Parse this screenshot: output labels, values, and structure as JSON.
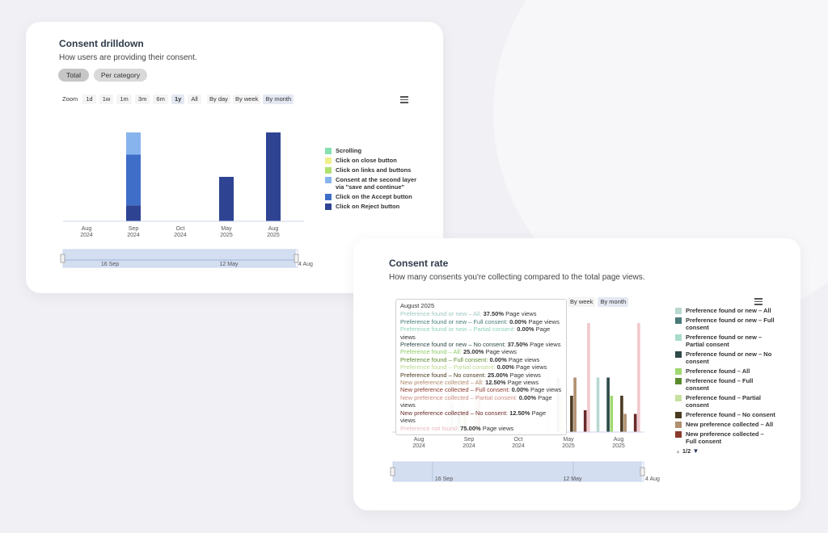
{
  "card1": {
    "title": "Consent drilldown",
    "subtitle": "How users are providing their consent.",
    "tabs": [
      {
        "label": "Total",
        "active": true
      },
      {
        "label": "Per category",
        "active": false
      }
    ],
    "zoom_label": "Zoom",
    "zoom_options": [
      "1d",
      "1w",
      "1m",
      "3m",
      "6m",
      "1y",
      "All"
    ],
    "zoom_selected": "1y",
    "group_options": [
      "By day",
      "By week",
      "By month"
    ],
    "group_selected": "By month",
    "navigator": {
      "labels": [
        "16 Sep",
        "12 May",
        "4 Aug"
      ]
    },
    "menu_icon": "hamburger-menu-icon"
  },
  "card2": {
    "title": "Consent rate",
    "subtitle": "How many consents you're collecting compared to the total page views.",
    "group_options": [
      "By week",
      "By month"
    ],
    "group_selected": "By month",
    "navigator": {
      "labels": [
        "16 Sep",
        "12 May",
        "4 Aug"
      ]
    },
    "legend_pager": "1/2",
    "menu_icon": "hamburger-menu-icon",
    "tooltip": {
      "title": "August 2025",
      "rows": [
        {
          "label": "Preference found or new – All",
          "value": "37.50%",
          "unit": "Page views",
          "color": "#9ec8c0"
        },
        {
          "label": "Preference found or new – Full consent",
          "value": "0.00%",
          "unit": "Page views",
          "color": "#4a7a7a"
        },
        {
          "label": "Preference found or new – Partial consent",
          "value": "0.00%",
          "unit": "Page views",
          "color": "#8ed1bf"
        },
        {
          "label": "Preference found or new – No consent",
          "value": "37.50%",
          "unit": "Page views",
          "color": "#2e4a48"
        },
        {
          "label": "Preference found – All",
          "value": "25.00%",
          "unit": "Page views",
          "color": "#8ccc66"
        },
        {
          "label": "Preference found – Full consent",
          "value": "0.00%",
          "unit": "Page views",
          "color": "#5a8a2e"
        },
        {
          "label": "Preference found – Partial consent",
          "value": "0.00%",
          "unit": "Page views",
          "color": "#b8d98a"
        },
        {
          "label": "Preference found – No consent",
          "value": "25.00%",
          "unit": "Page views",
          "color": "#4a3a20"
        },
        {
          "label": "New preference collected – All",
          "value": "12.50%",
          "unit": "Page views",
          "color": "#b08a6a"
        },
        {
          "label": "New preference collected – Full consent",
          "value": "0.00%",
          "unit": "Page views",
          "color": "#8a3a2e"
        },
        {
          "label": "New preference collected – Partial consent",
          "value": "0.00%",
          "unit": "Page views",
          "color": "#c98a80"
        },
        {
          "label": "New preference collected – No consent",
          "value": "12.50%",
          "unit": "Page views",
          "color": "#6a2a2a"
        },
        {
          "label": "Preference not found",
          "value": "75.00%",
          "unit": "Page views",
          "color": "#e8b8c0"
        }
      ]
    }
  },
  "chart_data": [
    {
      "type": "bar",
      "stacked": true,
      "title": "Consent drilldown",
      "categories": [
        "Aug 2024",
        "Sep 2024",
        "Oct 2024",
        "May 2025",
        "Aug 2025"
      ],
      "ylim": [
        0,
        100
      ],
      "grid": false,
      "legend_position": "right",
      "series": [
        {
          "name": "Scrolling",
          "color": "#86e0b0",
          "values": [
            0,
            0,
            0,
            0,
            0
          ]
        },
        {
          "name": "Click on close button",
          "color": "#eef08a",
          "values": [
            0,
            0,
            0,
            0,
            0
          ]
        },
        {
          "name": "Click on links and buttons",
          "color": "#b0e070",
          "values": [
            0,
            0,
            0,
            0,
            0
          ]
        },
        {
          "name": "Consent at the second layer via \"save and continue\"",
          "color": "#88b4ee",
          "values": [
            0,
            25,
            0,
            0,
            0
          ]
        },
        {
          "name": "Click on the Accept button",
          "color": "#3f6ec8",
          "values": [
            0,
            57,
            0,
            0,
            0
          ]
        },
        {
          "name": "Click on Reject button",
          "color": "#2e4493",
          "values": [
            0,
            18,
            0,
            50,
            100
          ]
        }
      ]
    },
    {
      "type": "bar",
      "title": "Consent rate",
      "categories": [
        "Aug 2024",
        "Sep 2024",
        "Oct 2024",
        "May 2025",
        "Aug 2025"
      ],
      "ylim": [
        0,
        100
      ],
      "grid": false,
      "legend_position": "right",
      "series": [
        {
          "name": "Preference found or new – All",
          "color": "#b8d8d0",
          "values": [
            0,
            37.5,
            0,
            37.5,
            37.5
          ]
        },
        {
          "name": "Preference found or new – Full consent",
          "color": "#4a7a7a",
          "values": [
            0,
            20,
            0,
            0,
            0
          ]
        },
        {
          "name": "Preference found or new – Partial consent",
          "color": "#a8dcc8",
          "values": [
            0,
            10,
            0,
            0,
            0
          ]
        },
        {
          "name": "Preference found or new – No consent",
          "color": "#2e4a48",
          "values": [
            0,
            15,
            0,
            37.5,
            37.5
          ]
        },
        {
          "name": "Preference found – All",
          "color": "#a0d870",
          "values": [
            0,
            20,
            0,
            25,
            25
          ]
        },
        {
          "name": "Preference found – Full consent",
          "color": "#5a8a2e",
          "values": [
            0,
            15,
            0,
            0,
            0
          ]
        },
        {
          "name": "Preference found – Partial consent",
          "color": "#c8e0a0",
          "values": [
            0,
            0,
            0,
            0,
            0
          ]
        },
        {
          "name": "Preference found – No consent",
          "color": "#4a3a20",
          "values": [
            0,
            0,
            0,
            25,
            25
          ]
        },
        {
          "name": "New preference collected – All",
          "color": "#b09070",
          "values": [
            0,
            37.5,
            0,
            37.5,
            12.5
          ]
        },
        {
          "name": "New preference collected – Full consent",
          "color": "#8a3a2e",
          "values": [
            0,
            37.5,
            0,
            0,
            0
          ]
        },
        {
          "name": "New preference collected – Partial consent",
          "color": "#d8a8a8",
          "values": [
            0,
            0,
            0,
            0,
            0
          ]
        },
        {
          "name": "New preference collected – No consent",
          "color": "#6a2a2a",
          "values": [
            0,
            0,
            0,
            15,
            12.5
          ]
        },
        {
          "name": "Preference not found",
          "color": "#f0c8cc",
          "values": [
            75,
            75,
            75,
            75,
            75
          ]
        }
      ]
    }
  ]
}
